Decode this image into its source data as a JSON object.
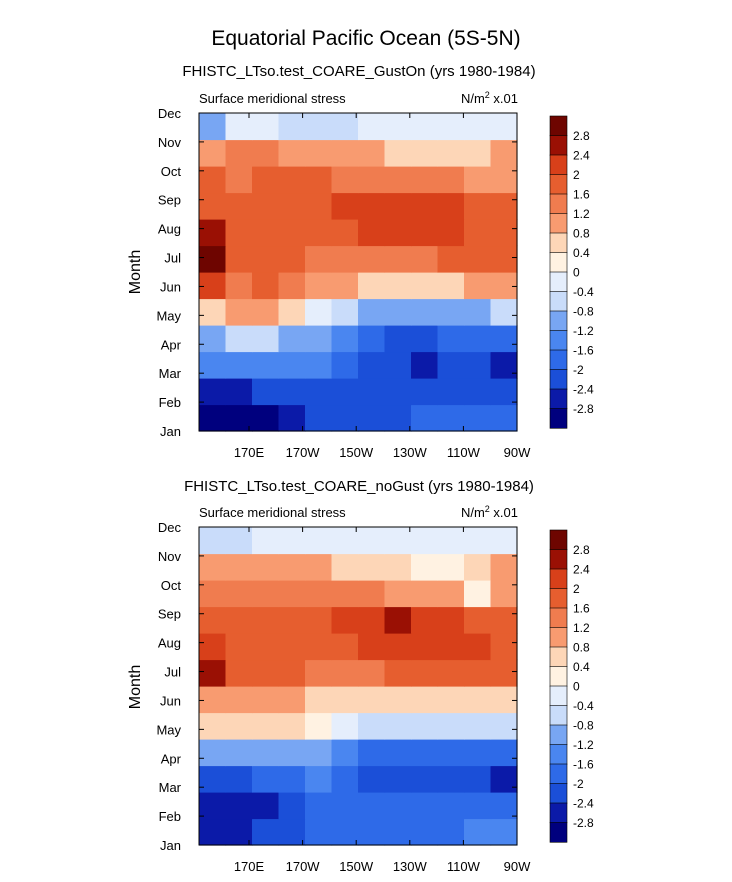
{
  "figure_title": "Equatorial Pacific Ocean (5S-5N)",
  "chart_data": [
    {
      "type": "heatmap",
      "title": "FHISTC_LTso.test_COARE_GustOn (yrs 1980-1984)",
      "subtitle_left": "Surface meridional stress",
      "units_prefix": "N/m",
      "units_power": "2",
      "units_suffix": " x.01",
      "ylabel": "Month",
      "xlabel": "",
      "y_ticks": [
        "Jan",
        "Feb",
        "Mar",
        "Apr",
        "May",
        "Jun",
        "Jul",
        "Aug",
        "Sep",
        "Oct",
        "Nov",
        "Dec"
      ],
      "x_ticks": [
        "170E",
        "170W",
        "150W",
        "130W",
        "110W",
        "90W"
      ],
      "colorbar_labels": [
        "2.8",
        "2.4",
        "2",
        "1.6",
        "1.2",
        "0.8",
        "0.4",
        "0",
        "-0.4",
        "-0.8",
        "-1.2",
        "-1.6",
        "-2",
        "-2.4",
        "-2.8"
      ],
      "grid": [
        [
          -2.9,
          -3.1,
          -3.0,
          -2.6,
          -2.3,
          -2.2,
          -2.1,
          -2.1,
          -2.0,
          -2.0,
          -2.0,
          -2.0
        ],
        [
          -2.5,
          -2.6,
          -2.4,
          -2.2,
          -2.1,
          -2.1,
          -2.2,
          -2.4,
          -2.3,
          -2.2,
          -2.2,
          -2.2
        ],
        [
          -1.6,
          -1.6,
          -1.5,
          -1.5,
          -1.6,
          -1.8,
          -2.1,
          -2.4,
          -2.5,
          -2.4,
          -2.3,
          -2.6
        ],
        [
          -0.9,
          -0.6,
          -0.5,
          -0.9,
          -1.2,
          -1.5,
          -1.9,
          -2.1,
          -2.2,
          -2.0,
          -1.9,
          -2.0
        ],
        [
          0.6,
          0.9,
          0.8,
          0.4,
          -0.1,
          -0.5,
          -1.0,
          -1.2,
          -1.1,
          -1.0,
          -0.9,
          -0.8
        ],
        [
          2.0,
          1.4,
          1.8,
          1.2,
          0.9,
          0.8,
          0.6,
          0.5,
          0.6,
          0.7,
          0.8,
          0.8
        ],
        [
          2.9,
          1.7,
          1.9,
          1.6,
          1.4,
          1.5,
          1.5,
          1.4,
          1.5,
          1.6,
          1.7,
          1.7
        ],
        [
          2.7,
          1.7,
          1.9,
          1.7,
          1.7,
          1.9,
          2.2,
          2.2,
          2.3,
          2.2,
          1.9,
          1.8
        ],
        [
          1.8,
          1.7,
          1.8,
          1.8,
          1.9,
          2.0,
          2.3,
          2.2,
          2.1,
          2.0,
          1.8,
          1.6
        ],
        [
          1.6,
          1.5,
          1.6,
          1.8,
          1.7,
          1.5,
          1.5,
          1.3,
          1.3,
          1.2,
          1.0,
          1.0
        ],
        [
          1.0,
          1.2,
          1.3,
          1.1,
          1.0,
          0.9,
          0.8,
          0.7,
          0.7,
          0.6,
          0.5,
          0.9
        ],
        [
          -0.9,
          -0.2,
          -0.3,
          -0.6,
          -0.6,
          -0.5,
          -0.3,
          -0.3,
          -0.4,
          -0.4,
          -0.3,
          -0.2
        ]
      ]
    },
    {
      "type": "heatmap",
      "title": "FHISTC_LTso.test_COARE_noGust (yrs 1980-1984)",
      "subtitle_left": "Surface meridional stress",
      "units_prefix": "N/m",
      "units_power": "2",
      "units_suffix": " x.01",
      "ylabel": "Month",
      "xlabel": "",
      "y_ticks": [
        "Jan",
        "Feb",
        "Mar",
        "Apr",
        "May",
        "Jun",
        "Jul",
        "Aug",
        "Sep",
        "Oct",
        "Nov",
        "Dec"
      ],
      "x_ticks": [
        "170E",
        "170W",
        "150W",
        "130W",
        "110W",
        "90W"
      ],
      "colorbar_labels": [
        "2.8",
        "2.4",
        "2",
        "1.6",
        "1.2",
        "0.8",
        "0.4",
        "0",
        "-0.4",
        "-0.8",
        "-1.2",
        "-1.6",
        "-2",
        "-2.4",
        "-2.8"
      ],
      "grid": [
        [
          -2.6,
          -2.7,
          -2.4,
          -2.1,
          -1.9,
          -1.8,
          -1.8,
          -1.9,
          -1.8,
          -1.7,
          -1.6,
          -1.6
        ],
        [
          -2.7,
          -2.8,
          -2.6,
          -2.2,
          -1.9,
          -1.8,
          -1.9,
          -2.0,
          -1.9,
          -1.8,
          -1.7,
          -1.7
        ],
        [
          -2.3,
          -2.2,
          -2.0,
          -1.8,
          -1.6,
          -1.7,
          -2.2,
          -2.3,
          -2.4,
          -2.3,
          -2.2,
          -2.7
        ],
        [
          -1.1,
          -0.9,
          -1.0,
          -1.1,
          -1.2,
          -1.4,
          -1.7,
          -1.8,
          -1.9,
          -1.8,
          -1.7,
          -1.7
        ],
        [
          0.6,
          0.6,
          0.6,
          0.5,
          0.3,
          -0.2,
          -0.6,
          -0.8,
          -0.8,
          -0.7,
          -0.6,
          -0.5
        ],
        [
          0.9,
          0.8,
          0.9,
          0.8,
          0.7,
          0.7,
          0.5,
          0.5,
          0.6,
          0.6,
          0.6,
          0.6
        ],
        [
          2.5,
          1.6,
          1.6,
          1.6,
          1.5,
          1.5,
          1.5,
          1.6,
          1.6,
          1.7,
          1.8,
          1.8
        ],
        [
          2.0,
          1.6,
          1.6,
          1.6,
          1.6,
          1.8,
          2.0,
          2.2,
          2.3,
          2.2,
          2.0,
          1.9
        ],
        [
          1.6,
          1.7,
          1.8,
          1.8,
          1.8,
          2.1,
          2.3,
          2.4,
          2.2,
          2.1,
          1.9,
          1.8
        ],
        [
          1.4,
          1.3,
          1.3,
          1.4,
          1.5,
          1.4,
          1.3,
          1.1,
          1.0,
          0.9,
          0.3,
          0.8
        ],
        [
          1.0,
          0.9,
          1.0,
          1.0,
          0.9,
          0.7,
          0.5,
          0.4,
          0.3,
          0.3,
          0.4,
          0.9
        ],
        [
          -0.8,
          -0.5,
          -0.4,
          -0.4,
          -0.3,
          -0.2,
          -0.1,
          -0.1,
          -0.1,
          -0.2,
          -0.2,
          -0.1
        ]
      ]
    }
  ],
  "palette": [
    "#00007e",
    "#0b1aa8",
    "#1036c8",
    "#1b4fd8",
    "#2e6ae8",
    "#4a86f0",
    "#78a6f3",
    "#a3c2f6",
    "#c9dcfa",
    "#e5eefc",
    "#fff2e2",
    "#fdd6b7",
    "#fbb892",
    "#f89b70",
    "#f07c4f",
    "#e65e2f",
    "#d8401a",
    "#bf240c",
    "#9a1004",
    "#6e0500"
  ]
}
